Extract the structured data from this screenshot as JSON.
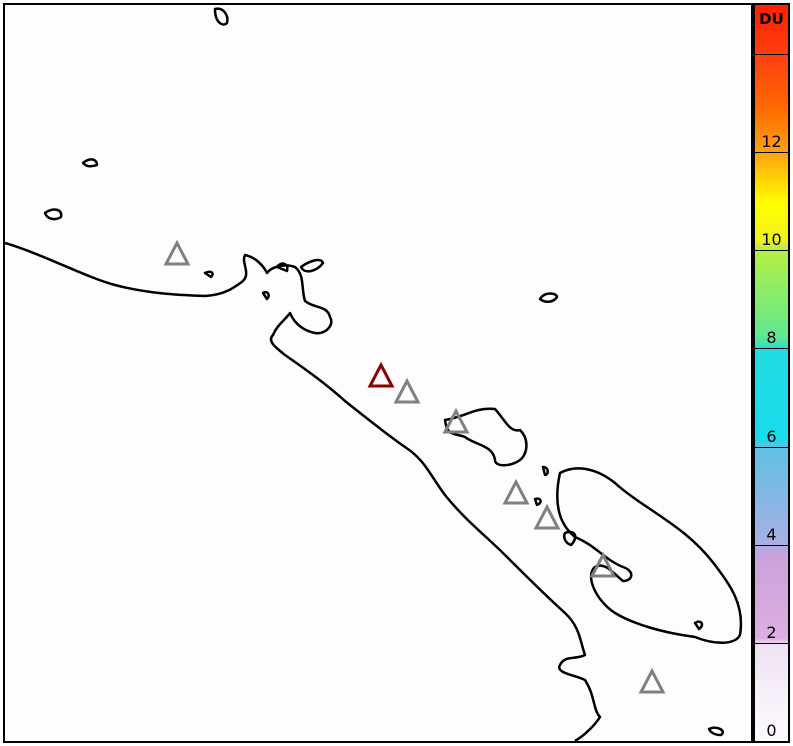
{
  "colorbar": {
    "unit": "DU",
    "ticks": [
      "0",
      "2",
      "4",
      "6",
      "8",
      "10",
      "12"
    ],
    "range": [
      0,
      15
    ],
    "colors": [
      "#fdfbff",
      "#dcaee0",
      "#8fb0e4",
      "#18dcec",
      "#60e890",
      "#ffff00",
      "#ff8000",
      "#ff2000"
    ]
  },
  "markers": {
    "symbol": "triangle",
    "active_color": "#8b0000",
    "other_color": "#808080",
    "count": 8,
    "active_count": 1
  },
  "coastline_color": "#000000"
}
